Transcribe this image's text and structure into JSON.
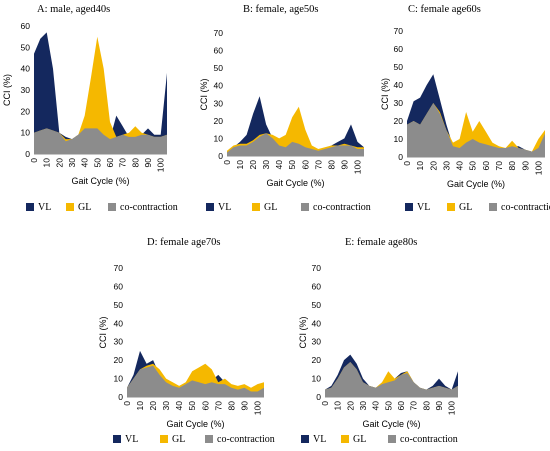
{
  "colors": {
    "VL": "#14285e",
    "GL": "#f5b800",
    "co": "#8c8c8c"
  },
  "chart_data": [
    {
      "type": "area",
      "title": "A: male, aged40s",
      "xlabel": "Gait Cycle (%)",
      "ylabel": "CCI (%)",
      "ylim": [
        0,
        60
      ],
      "yticks": [
        "0",
        "10",
        "20",
        "30",
        "40",
        "50",
        "60"
      ],
      "xticks": [
        "0",
        "10",
        "20",
        "30",
        "40",
        "50",
        "60",
        "70",
        "80",
        "90",
        "100"
      ],
      "x": [
        0,
        5,
        10,
        15,
        20,
        25,
        30,
        35,
        40,
        45,
        50,
        55,
        60,
        65,
        70,
        75,
        80,
        85,
        90,
        95,
        100,
        105
      ],
      "series": [
        {
          "name": "VL",
          "values": [
            47,
            54,
            57,
            40,
            10,
            8,
            7,
            9,
            12,
            13,
            12,
            9,
            7,
            18,
            13,
            8,
            8,
            9,
            12,
            9,
            9,
            38
          ]
        },
        {
          "name": "GL",
          "values": [
            10,
            11,
            12,
            11,
            10,
            7,
            7,
            9,
            18,
            36,
            55,
            40,
            15,
            8,
            9,
            10,
            13,
            10,
            9,
            8,
            8,
            9
          ]
        },
        {
          "name": "co-contraction",
          "values": [
            10,
            11,
            12,
            11,
            10,
            6,
            7,
            9,
            12,
            12,
            12,
            9,
            7,
            8,
            9,
            8,
            8,
            9,
            9,
            8,
            8,
            9
          ]
        }
      ],
      "legend": "bottom"
    },
    {
      "type": "area",
      "title": "B: female, age50s",
      "xlabel": "Gait Cycle (%)",
      "ylabel": "CCI (%)",
      "ylim": [
        0,
        70
      ],
      "yticks": [
        "0",
        "10",
        "20",
        "30",
        "40",
        "50",
        "60",
        "70"
      ],
      "xticks": [
        "0",
        "10",
        "20",
        "30",
        "40",
        "50",
        "60",
        "70",
        "80",
        "90",
        "100"
      ],
      "x": [
        0,
        5,
        10,
        15,
        20,
        25,
        30,
        35,
        40,
        45,
        50,
        55,
        60,
        65,
        70,
        75,
        80,
        85,
        90,
        95,
        100,
        105
      ],
      "series": [
        {
          "name": "VL",
          "values": [
            2,
            5,
            8,
            12,
            24,
            34,
            18,
            10,
            7,
            6,
            8,
            7,
            5,
            4,
            3,
            4,
            6,
            8,
            10,
            18,
            8,
            5
          ]
        },
        {
          "name": "GL",
          "values": [
            3,
            6,
            7,
            7,
            9,
            12,
            13,
            12,
            10,
            12,
            22,
            28,
            15,
            6,
            4,
            5,
            6,
            6,
            7,
            6,
            5,
            5
          ]
        },
        {
          "name": "co-contraction",
          "values": [
            2,
            5,
            6,
            6,
            8,
            11,
            13,
            10,
            6,
            5,
            8,
            7,
            5,
            4,
            3,
            4,
            5,
            6,
            6,
            6,
            4,
            4
          ]
        }
      ],
      "legend": "bottom"
    },
    {
      "type": "area",
      "title": "C: female age60s",
      "xlabel": "Gait Cycle (%)",
      "ylabel": "CCI (%)",
      "ylim": [
        0,
        70
      ],
      "yticks": [
        "0",
        "10",
        "20",
        "30",
        "40",
        "50",
        "60",
        "70"
      ],
      "xticks": [
        "0",
        "10",
        "20",
        "30",
        "40",
        "50",
        "60",
        "70",
        "80",
        "90",
        "100"
      ],
      "x": [
        0,
        5,
        10,
        15,
        20,
        25,
        30,
        35,
        40,
        45,
        50,
        55,
        60,
        65,
        70,
        75,
        80,
        85,
        90,
        95,
        100,
        105
      ],
      "series": [
        {
          "name": "VL",
          "values": [
            20,
            31,
            33,
            40,
            46,
            32,
            18,
            6,
            5,
            8,
            10,
            8,
            7,
            6,
            5,
            5,
            6,
            6,
            4,
            3,
            5,
            13
          ]
        },
        {
          "name": "GL",
          "values": [
            18,
            20,
            18,
            24,
            30,
            25,
            15,
            8,
            10,
            25,
            14,
            20,
            14,
            8,
            6,
            5,
            9,
            5,
            4,
            3,
            10,
            15
          ]
        },
        {
          "name": "co-contraction",
          "values": [
            18,
            20,
            18,
            24,
            30,
            24,
            15,
            6,
            5,
            8,
            10,
            8,
            7,
            6,
            5,
            5,
            6,
            5,
            4,
            3,
            5,
            13
          ]
        }
      ],
      "legend": "bottom"
    },
    {
      "type": "area",
      "title": "D: female age70s",
      "xlabel": "Gait Cycle (%)",
      "ylabel": "CCI (%)",
      "ylim": [
        0,
        70
      ],
      "yticks": [
        "0",
        "10",
        "20",
        "30",
        "40",
        "50",
        "60",
        "70"
      ],
      "xticks": [
        "0",
        "10",
        "20",
        "30",
        "40",
        "50",
        "60",
        "70",
        "80",
        "90",
        "100"
      ],
      "x": [
        0,
        5,
        10,
        15,
        20,
        25,
        30,
        35,
        40,
        45,
        50,
        55,
        60,
        65,
        70,
        75,
        80,
        85,
        90,
        95,
        100,
        105
      ],
      "series": [
        {
          "name": "VL",
          "values": [
            5,
            12,
            25,
            18,
            20,
            12,
            8,
            6,
            5,
            7,
            9,
            8,
            7,
            9,
            12,
            8,
            5,
            4,
            5,
            3,
            3,
            6
          ]
        },
        {
          "name": "GL",
          "values": [
            5,
            10,
            15,
            17,
            18,
            15,
            10,
            8,
            6,
            8,
            14,
            16,
            18,
            15,
            8,
            10,
            7,
            6,
            7,
            5,
            7,
            8
          ]
        },
        {
          "name": "co-contraction",
          "values": [
            5,
            10,
            15,
            16,
            17,
            12,
            8,
            6,
            5,
            7,
            9,
            8,
            7,
            8,
            7,
            7,
            5,
            4,
            5,
            3,
            3,
            5
          ]
        }
      ],
      "legend": "bottom"
    },
    {
      "type": "area",
      "title": "E: female age80s",
      "xlabel": "Gait Cycle (%)",
      "ylabel": "CCI (%)",
      "ylim": [
        0,
        70
      ],
      "yticks": [
        "0",
        "10",
        "20",
        "30",
        "40",
        "50",
        "60",
        "70"
      ],
      "xticks": [
        "0",
        "10",
        "20",
        "30",
        "40",
        "50",
        "60",
        "70",
        "80",
        "90",
        "100"
      ],
      "x": [
        0,
        5,
        10,
        15,
        20,
        25,
        30,
        35,
        40,
        45,
        50,
        55,
        60,
        65,
        70,
        75,
        80,
        85,
        90,
        95,
        100,
        105
      ],
      "series": [
        {
          "name": "VL",
          "values": [
            4,
            6,
            12,
            20,
            23,
            18,
            10,
            6,
            5,
            7,
            8,
            10,
            13,
            14,
            8,
            5,
            4,
            6,
            10,
            6,
            4,
            14
          ]
        },
        {
          "name": "GL",
          "values": [
            4,
            5,
            10,
            16,
            19,
            15,
            8,
            6,
            5,
            8,
            14,
            10,
            12,
            14,
            8,
            5,
            4,
            5,
            6,
            5,
            4,
            6
          ]
        },
        {
          "name": "co-contraction",
          "values": [
            4,
            5,
            10,
            16,
            19,
            15,
            8,
            6,
            5,
            7,
            8,
            9,
            12,
            13,
            8,
            5,
            4,
            5,
            6,
            5,
            4,
            6
          ]
        }
      ],
      "legend": "bottom"
    }
  ]
}
